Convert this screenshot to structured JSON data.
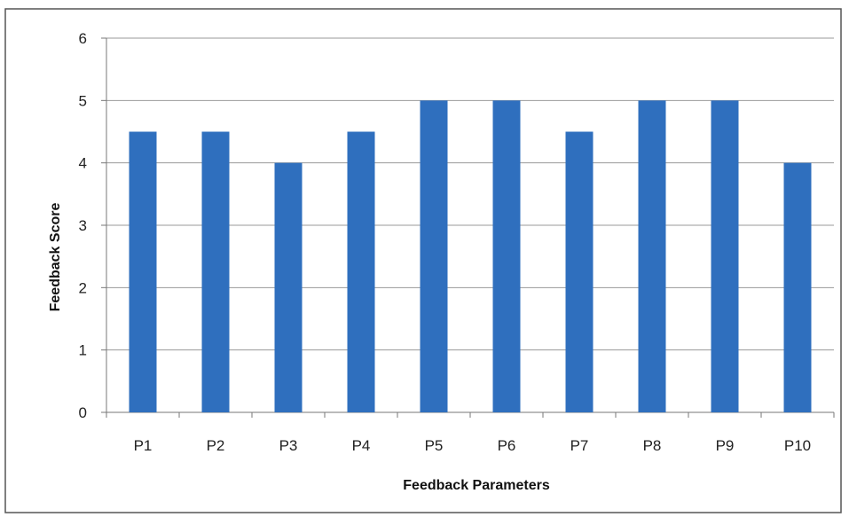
{
  "chart_data": {
    "type": "bar",
    "title": "",
    "xlabel": "Feedback Parameters",
    "ylabel": "Feedback Score",
    "categories": [
      "P1",
      "P2",
      "P3",
      "P4",
      "P5",
      "P6",
      "P7",
      "P8",
      "P9",
      "P10"
    ],
    "values": [
      4.5,
      4.5,
      4,
      4.5,
      5,
      5,
      4.5,
      5,
      5,
      4
    ],
    "ylim": [
      0,
      6
    ],
    "yticks": [
      0,
      1,
      2,
      3,
      4,
      5,
      6
    ],
    "grid": "horizontal",
    "legend": "none",
    "bar_color": "#2F6FBE"
  }
}
